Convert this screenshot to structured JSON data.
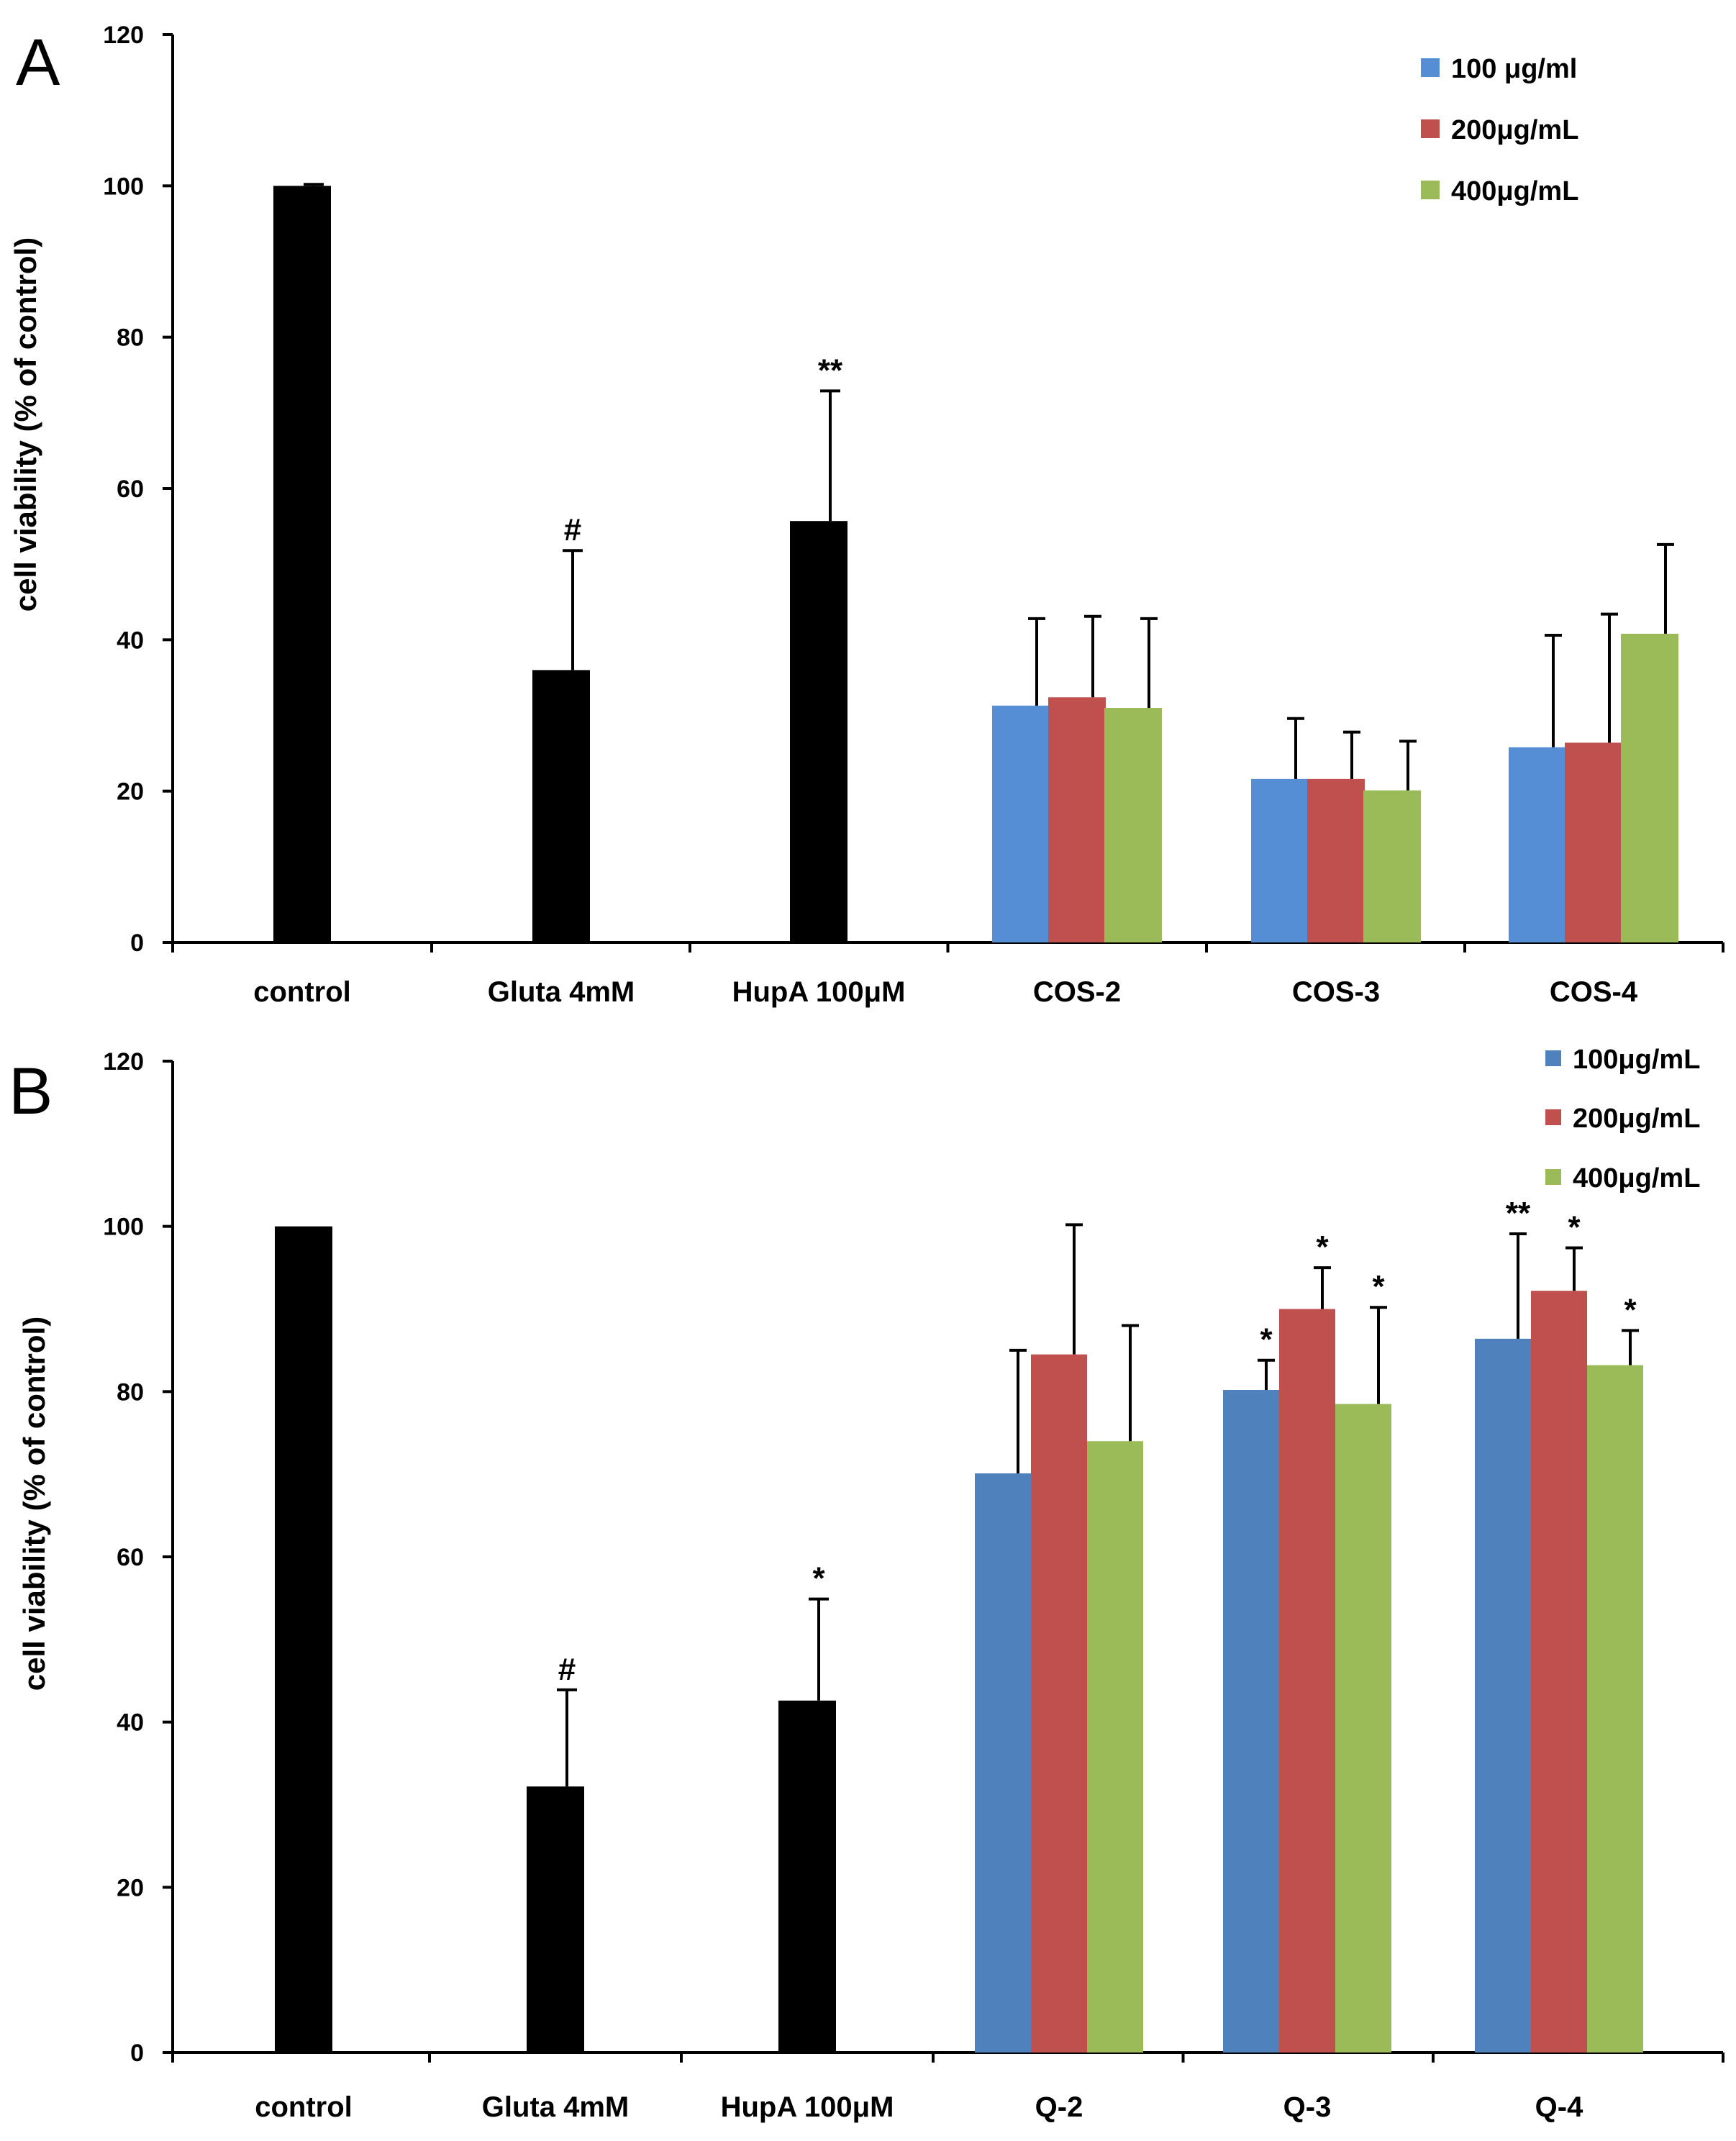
{
  "chart_data": [
    {
      "type": "bar",
      "panel": "A",
      "ylabel": "cell viability (% of control)",
      "ylim": [
        0,
        120
      ],
      "yticks": [
        "0",
        "20",
        "40",
        "60",
        "80",
        "100",
        "120"
      ],
      "categories": [
        "control",
        "Gluta 4mM",
        "HupA 100μM",
        "COS-2",
        "COS-3",
        "COS-4"
      ],
      "legend": [
        "100 μg/ml",
        "200μg/mL",
        "400μg/mL"
      ],
      "legend_position": "top-right",
      "colors": {
        "single": "#000000",
        "series": [
          "#558ED5",
          "#C0504D",
          "#9BBB59"
        ]
      },
      "single_bars": [
        {
          "category": "control",
          "value": 100,
          "error": 0.2,
          "label": ""
        },
        {
          "category": "Gluta 4mM",
          "value": 36,
          "error": 15.8,
          "label": "#"
        },
        {
          "category": "HupA 100μM",
          "value": 55.7,
          "error": 17.2,
          "label": "**"
        }
      ],
      "grouped": [
        {
          "category": "COS-2",
          "values": [
            31.3,
            32.4,
            31.0
          ],
          "errors": [
            11.5,
            10.7,
            11.8
          ],
          "labels": [
            "",
            "",
            ""
          ]
        },
        {
          "category": "COS-3",
          "values": [
            21.6,
            21.6,
            20.1
          ],
          "errors": [
            8.0,
            6.2,
            6.5
          ],
          "labels": [
            "",
            "",
            ""
          ]
        },
        {
          "category": "COS-4",
          "values": [
            25.8,
            26.4,
            40.8
          ],
          "errors": [
            14.8,
            17.0,
            11.8
          ],
          "labels": [
            "",
            "",
            ""
          ]
        }
      ]
    },
    {
      "type": "bar",
      "panel": "B",
      "ylabel": "cell viability (% of control)",
      "ylim": [
        0,
        120
      ],
      "yticks": [
        "0",
        "20",
        "40",
        "60",
        "80",
        "100",
        "120"
      ],
      "categories": [
        "control",
        "Gluta  4mM",
        "HupA 100μM",
        "Q-2",
        "Q-3",
        "Q-4"
      ],
      "legend": [
        "100μg/mL",
        "200μg/mL",
        "400μg/mL"
      ],
      "legend_position": "top-right",
      "colors": {
        "single": "#000000",
        "series": [
          "#4F81BD",
          "#C0504D",
          "#9BBB59"
        ]
      },
      "single_bars": [
        {
          "category": "control",
          "value": 100,
          "error": 0,
          "label": ""
        },
        {
          "category": "Gluta  4mM",
          "value": 32.2,
          "error": 11.7,
          "label": "#"
        },
        {
          "category": "HupA 100μM",
          "value": 42.6,
          "error": 12.3,
          "label": "*"
        }
      ],
      "grouped": [
        {
          "category": "Q-2",
          "values": [
            70.1,
            84.5,
            74.0
          ],
          "errors": [
            14.9,
            15.7,
            14.0
          ],
          "labels": [
            "",
            "",
            ""
          ]
        },
        {
          "category": "Q-3",
          "values": [
            80.2,
            90.0,
            78.5
          ],
          "errors": [
            3.6,
            5.0,
            11.7
          ],
          "labels": [
            "*",
            "*",
            "*"
          ]
        },
        {
          "category": "Q-4",
          "values": [
            86.4,
            92.2,
            83.2
          ],
          "errors": [
            12.7,
            5.2,
            4.2
          ],
          "labels": [
            "**",
            "*",
            "*"
          ]
        }
      ]
    }
  ]
}
